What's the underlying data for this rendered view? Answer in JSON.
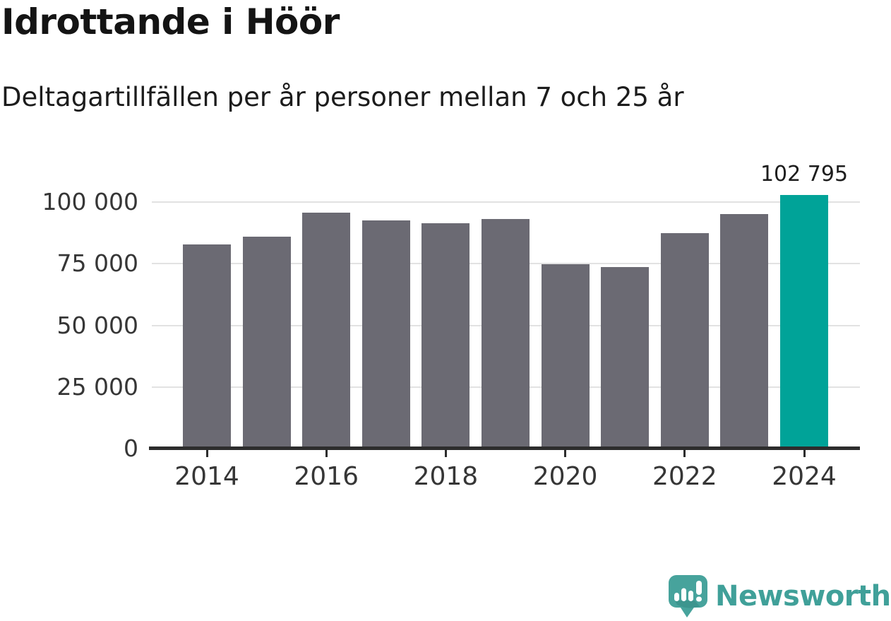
{
  "header": {
    "title": "Idrottande i Höör",
    "subtitle": "Deltagartillfällen per år personer mellan 7 och 25 år"
  },
  "chart_data": {
    "type": "bar",
    "title": "Idrottande i Höör",
    "subtitle": "Deltagartillfällen per år personer mellan 7 och 25 år",
    "xlabel": "",
    "ylabel": "",
    "categories": [
      "2014",
      "2015",
      "2016",
      "2017",
      "2018",
      "2019",
      "2020",
      "2021",
      "2022",
      "2023",
      "2024"
    ],
    "values": [
      82800,
      85900,
      95600,
      92500,
      91500,
      93000,
      74800,
      73600,
      87500,
      95200,
      102795
    ],
    "highlight_index": 10,
    "highlight_label": "102 795",
    "ylim": [
      0,
      110000
    ],
    "yticks": [
      0,
      25000,
      50000,
      75000,
      100000
    ],
    "ytick_labels": [
      "0",
      "25 000",
      "50 000",
      "75 000",
      "100 000"
    ],
    "xtick_labels": [
      "2014",
      "2016",
      "2018",
      "2020",
      "2022",
      "2024"
    ],
    "grid": "horizontal",
    "legend": "none",
    "colors": {
      "bar": "#6b6a73",
      "highlight": "#00a398",
      "gridline": "#e2e2e2",
      "axis": "#2d2d2d",
      "label": "#1d1d1d"
    }
  },
  "footer": {
    "brand": "Newsworthy",
    "brand_color": "#40a099",
    "logo_color": "#47a39c",
    "logo_icon": "newsworthy-speech-bubble-chart-icon"
  }
}
